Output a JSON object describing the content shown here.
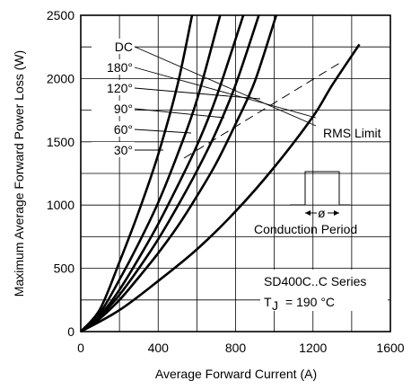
{
  "chart_data": {
    "type": "line",
    "xlabel": "Average Forward Current (A)",
    "ylabel": "Maximum Average Forward Power Loss (W)",
    "xlim": [
      0,
      1600
    ],
    "ylim": [
      0,
      2500
    ],
    "xticks": [
      "0",
      "400",
      "800",
      "1200",
      "1600"
    ],
    "yticks": [
      "0",
      "500",
      "1000",
      "1500",
      "2000",
      "2500"
    ],
    "grid": true,
    "series": [
      {
        "name": "30°",
        "x": [
          0,
          100,
          200,
          300,
          400,
          500,
          575
        ],
        "y": [
          0,
          180,
          550,
          950,
          1400,
          1950,
          2500
        ]
      },
      {
        "name": "60°",
        "x": [
          0,
          100,
          200,
          300,
          400,
          500,
          600,
          720
        ],
        "y": [
          0,
          150,
          410,
          700,
          1020,
          1400,
          1830,
          2500
        ]
      },
      {
        "name": "90°",
        "x": [
          0,
          100,
          200,
          300,
          400,
          500,
          600,
          700,
          840
        ],
        "y": [
          0,
          130,
          330,
          580,
          850,
          1150,
          1470,
          1850,
          2500
        ]
      },
      {
        "name": "120°",
        "x": [
          0,
          100,
          200,
          300,
          400,
          500,
          600,
          700,
          800,
          920
        ],
        "y": [
          0,
          120,
          290,
          500,
          730,
          990,
          1270,
          1580,
          1950,
          2500
        ]
      },
      {
        "name": "180°",
        "x": [
          0,
          100,
          200,
          300,
          400,
          500,
          600,
          700,
          800,
          900,
          1010
        ],
        "y": [
          0,
          105,
          250,
          430,
          620,
          830,
          1070,
          1330,
          1640,
          1980,
          2500
        ]
      },
      {
        "name": "DC",
        "x": [
          0,
          200,
          400,
          600,
          800,
          1000,
          1200,
          1300,
          1440
        ],
        "y": [
          0,
          170,
          400,
          650,
          950,
          1300,
          1700,
          1950,
          2270
        ]
      }
    ],
    "rms_limit_label": "RMS Limit",
    "annotations": [
      "Conduction Period",
      "SD400C..C Series",
      "T",
      "J",
      "= 190 °C"
    ],
    "conduction_symbol": "ø"
  }
}
